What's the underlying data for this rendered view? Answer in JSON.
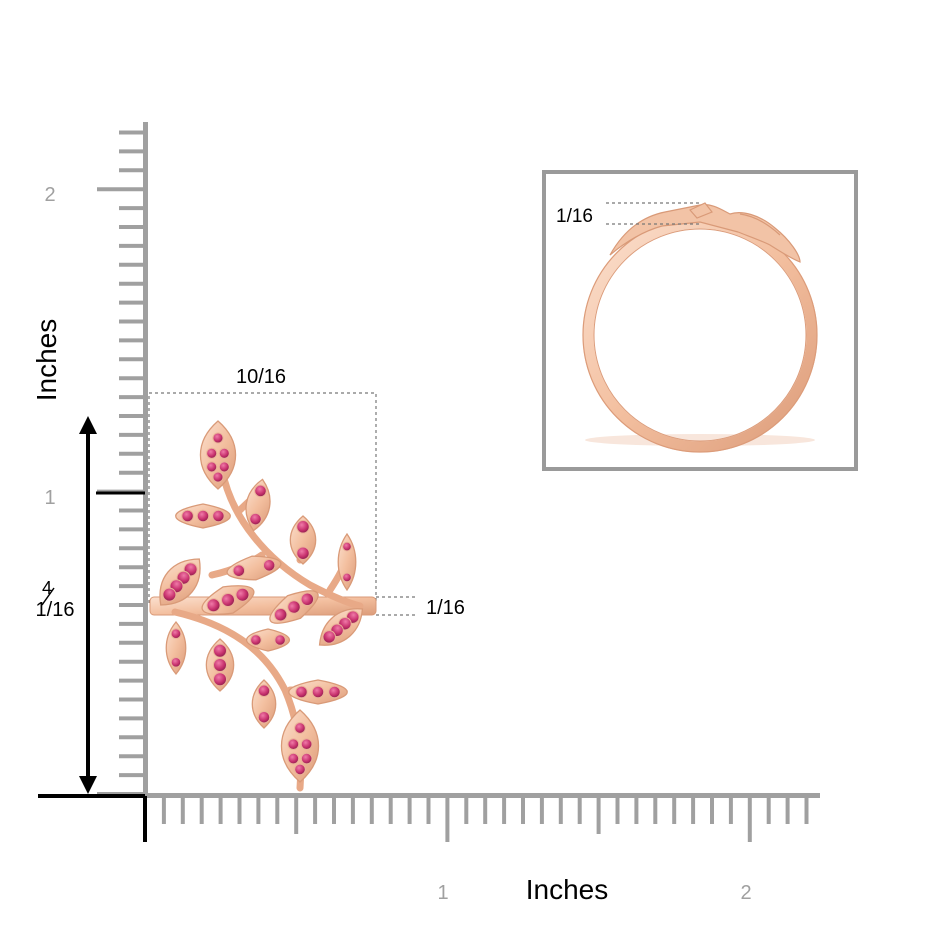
{
  "axes": {
    "unit_label": "Inches",
    "y_ticks": [
      "2",
      "1"
    ],
    "x_ticks": [
      "1",
      "2"
    ]
  },
  "dimensions": {
    "width": "10/16",
    "band_thickness": "1/16",
    "height_whole": "4",
    "height_fraction": "1/16",
    "side_band_thickness": "1/16"
  },
  "colors": {
    "ruler": "#a0a0a0",
    "axis": "#000000",
    "tick_text": "#a0a0a0",
    "metal": "#f2bfa0",
    "metal_dark": "#d99a78",
    "gem": "#c8326e",
    "dashed": "#777777",
    "frame": "#9a9a9a"
  }
}
